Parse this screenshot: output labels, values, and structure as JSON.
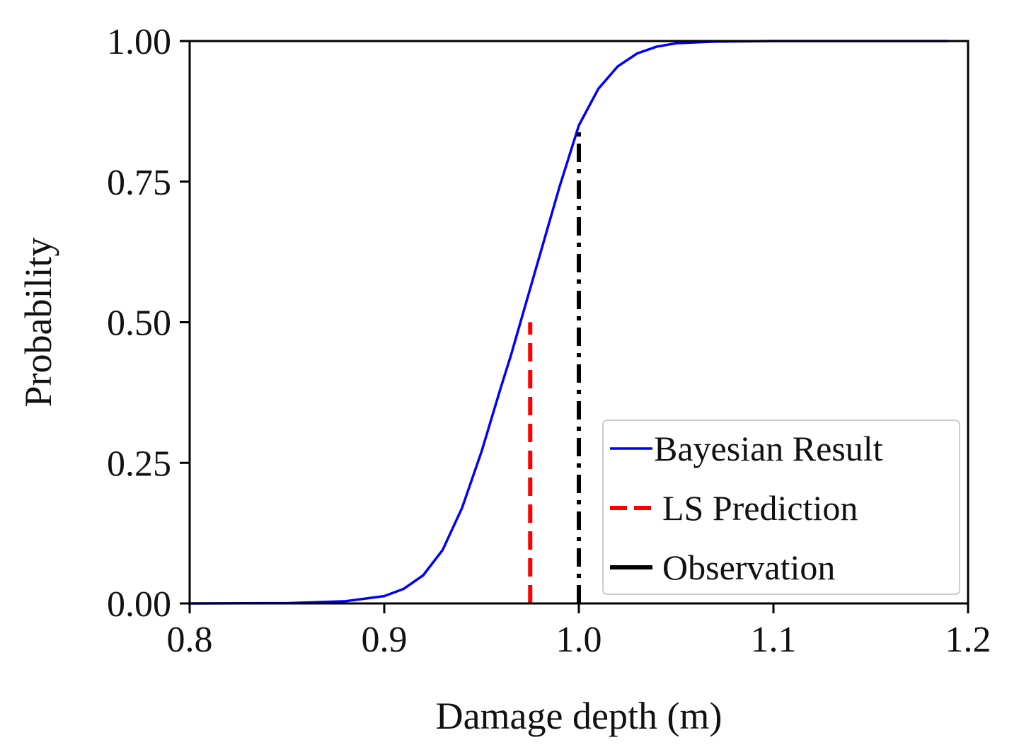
{
  "chart_data": {
    "type": "line",
    "title": "",
    "xlabel": "Damage depth (m)",
    "ylabel": "Probability",
    "xlim": [
      0.8,
      1.2
    ],
    "ylim": [
      0.0,
      1.0
    ],
    "x_ticks": [
      0.8,
      0.9,
      1.0,
      1.1,
      1.2
    ],
    "x_tick_labels": [
      "0.8",
      "0.9",
      "1.0",
      "1.1",
      "1.2"
    ],
    "y_ticks": [
      0.0,
      0.25,
      0.5,
      0.75,
      1.0
    ],
    "y_tick_labels": [
      "0.00",
      "0.25",
      "0.50",
      "0.75",
      "1.00"
    ],
    "grid": false,
    "legend_position": "bottom-right",
    "series": [
      {
        "name": "Bayesian Result",
        "style": "solid",
        "color": "#0000ff",
        "x": [
          0.8,
          0.85,
          0.88,
          0.9,
          0.91,
          0.92,
          0.93,
          0.94,
          0.95,
          0.96,
          0.965,
          0.97,
          0.975,
          0.98,
          0.985,
          0.99,
          1.0,
          1.01,
          1.02,
          1.03,
          1.04,
          1.05,
          1.07,
          1.1,
          1.15,
          1.19
        ],
        "y": [
          0.0,
          0.0005,
          0.004,
          0.013,
          0.026,
          0.05,
          0.095,
          0.17,
          0.27,
          0.385,
          0.44,
          0.5,
          0.56,
          0.62,
          0.68,
          0.74,
          0.85,
          0.915,
          0.955,
          0.978,
          0.99,
          0.996,
          0.999,
          1.0,
          1.0,
          1.0
        ]
      },
      {
        "name": "LS Prediction",
        "style": "dashed",
        "color": "#ff0000",
        "x": [
          0.975,
          0.975
        ],
        "y": [
          0.0,
          0.5
        ]
      },
      {
        "name": "Observation",
        "style": "dashdot",
        "color": "#000000",
        "x": [
          1.0,
          1.0
        ],
        "y": [
          0.0,
          0.85
        ]
      }
    ]
  }
}
